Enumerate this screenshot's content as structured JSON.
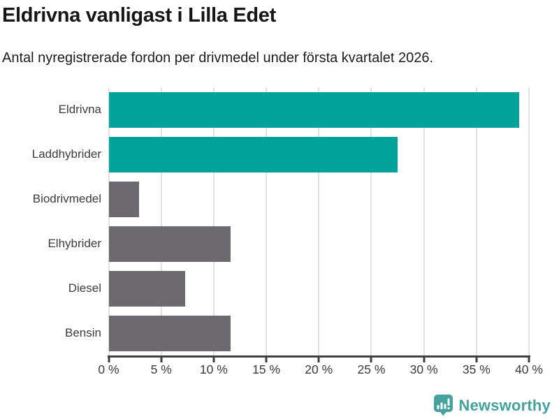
{
  "chart_data": {
    "type": "bar",
    "orientation": "horizontal",
    "title": "Eldrivna vanligast i Lilla Edet",
    "subtitle": "Antal nyregistrerade fordon per drivmedel under första kvartalet 2026.",
    "categories": [
      "Eldrivna",
      "Laddhybrider",
      "Biodrivmedel",
      "Elhybrider",
      "Diesel",
      "Bensin"
    ],
    "values": [
      39.1,
      27.5,
      2.9,
      11.6,
      7.3,
      11.6
    ],
    "unit": "%",
    "xlabel": "",
    "ylabel": "",
    "xlim": [
      0,
      40
    ],
    "xticks": [
      0,
      5,
      10,
      15,
      20,
      25,
      30,
      35,
      40
    ],
    "xtick_labels": [
      "0 %",
      "5 %",
      "10 %",
      "15 %",
      "20 %",
      "25 %",
      "30 %",
      "35 %",
      "40 %"
    ],
    "grid": "vertical",
    "legend": "none",
    "bar_colors": [
      "#00a29a",
      "#00a29a",
      "#6c6a6e",
      "#6c6a6e",
      "#6c6a6e",
      "#6c6a6e"
    ]
  },
  "colors": {
    "accent_teal": "#00a29a",
    "bar_gray": "#6c6a6e",
    "gridline": "#e1e1e1",
    "axis": "#3f3f3f",
    "brand": "#45a29c"
  },
  "footer": {
    "brand": "Newsworthy",
    "icon": "bar-chart-speech-bubble-icon"
  }
}
